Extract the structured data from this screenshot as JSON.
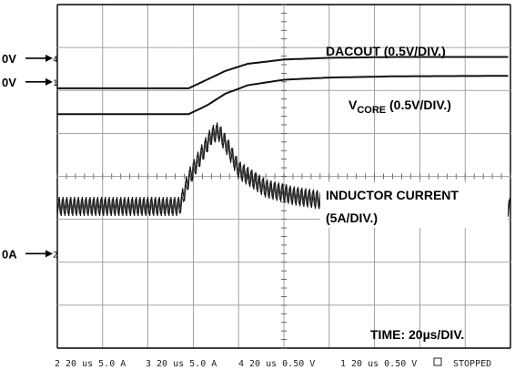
{
  "chart_data": {
    "type": "line",
    "title": "",
    "grid": true,
    "divisions": {
      "horizontal": 10,
      "vertical": 8
    },
    "time_per_div_us": 20,
    "labels": {
      "dacout": "DACOUT (0.5V/DIV.)",
      "vcore_main": "V",
      "vcore_sub": "CORE",
      "vcore_scale": " (0.5V/DIV.)",
      "inductor_line1": "INDUCTOR CURRENT",
      "inductor_line2": "(5A/DIV.)",
      "time": "TIME: 20",
      "time_unit": "µs/DIV."
    },
    "markers": [
      {
        "label": "0V",
        "channel": "4",
        "level_div": 6.75
      },
      {
        "label": "0V",
        "channel": "1",
        "level_div": 6.2
      },
      {
        "label": "0A",
        "channel": "2",
        "level_div": 2.2
      }
    ],
    "series": [
      {
        "channel": "4",
        "x_div": [
          0,
          2.9,
          3.3,
          3.7,
          4.2,
          5.0,
          6.0,
          7.5,
          10
        ],
        "y_div": [
          6.05,
          6.05,
          6.25,
          6.45,
          6.62,
          6.72,
          6.76,
          6.78,
          6.78
        ]
      },
      {
        "channel": "1",
        "x_div": [
          0,
          2.9,
          3.3,
          3.7,
          4.2,
          5.0,
          6.0,
          7.5,
          10
        ],
        "y_div": [
          5.45,
          5.45,
          5.65,
          5.92,
          6.12,
          6.25,
          6.3,
          6.33,
          6.34
        ]
      },
      {
        "channel": "2",
        "ripple_amplitude_div": 0.22,
        "ripple_period_div": 0.085,
        "x_div": [
          0,
          2.7,
          2.9,
          3.4,
          3.55,
          3.75,
          4.0,
          4.6,
          5.2,
          6.0,
          7.0,
          8.5,
          10
        ],
        "y_div": [
          3.3,
          3.3,
          3.95,
          4.95,
          5.05,
          4.7,
          4.15,
          3.72,
          3.55,
          3.42,
          3.33,
          3.28,
          3.28
        ]
      }
    ]
  },
  "footer": {
    "ch2": "2 20 us 5.0 A",
    "ch3": "3 20 us 5.0 A",
    "ch4": "4 20 us 0.50 V",
    "ch1": "1 20 us 0.50 V",
    "status": "STOPPED"
  }
}
